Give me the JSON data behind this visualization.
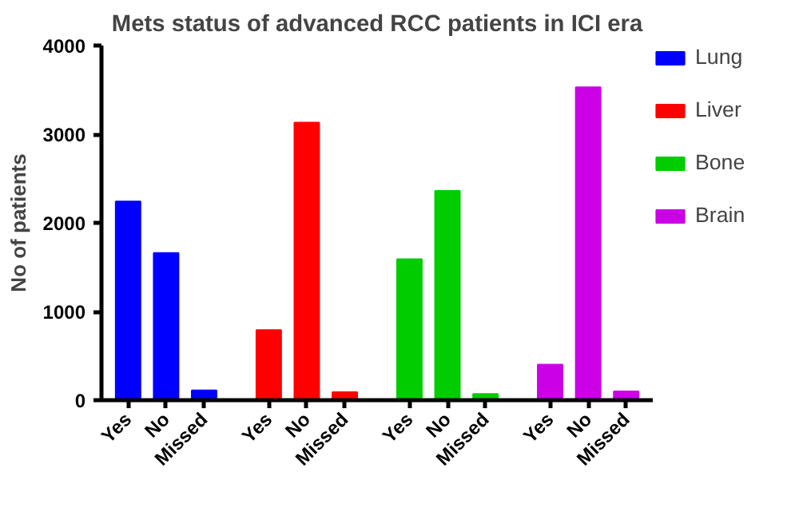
{
  "chart_data": {
    "type": "bar",
    "title": "Mets status of advanced RCC patients in ICI era",
    "ylabel": "No of patients",
    "categories": [
      "Yes",
      "No",
      "Missed",
      "Yes",
      "No",
      "Missed",
      "Yes",
      "No",
      "Missed",
      "Yes",
      "No",
      "Missed"
    ],
    "series": [
      {
        "name": "Lung",
        "color": "#0000ff",
        "values": [
          2240,
          1660,
          110,
          null,
          null,
          null,
          null,
          null,
          null,
          null,
          null,
          null
        ]
      },
      {
        "name": "Liver",
        "color": "#ff0000",
        "values": [
          null,
          null,
          null,
          790,
          3130,
          90,
          null,
          null,
          null,
          null,
          null,
          null
        ]
      },
      {
        "name": "Bone",
        "color": "#00cc00",
        "values": [
          null,
          null,
          null,
          null,
          null,
          null,
          1590,
          2360,
          70,
          null,
          null,
          null
        ]
      },
      {
        "name": "Brain",
        "color": "#cc00e6",
        "values": [
          null,
          null,
          null,
          null,
          null,
          null,
          null,
          null,
          null,
          400,
          3530,
          100
        ]
      }
    ],
    "ylim": [
      0,
      4000
    ],
    "yticks": [
      0,
      1000,
      2000,
      3000,
      4000
    ],
    "grid": false,
    "legend": "top right"
  }
}
